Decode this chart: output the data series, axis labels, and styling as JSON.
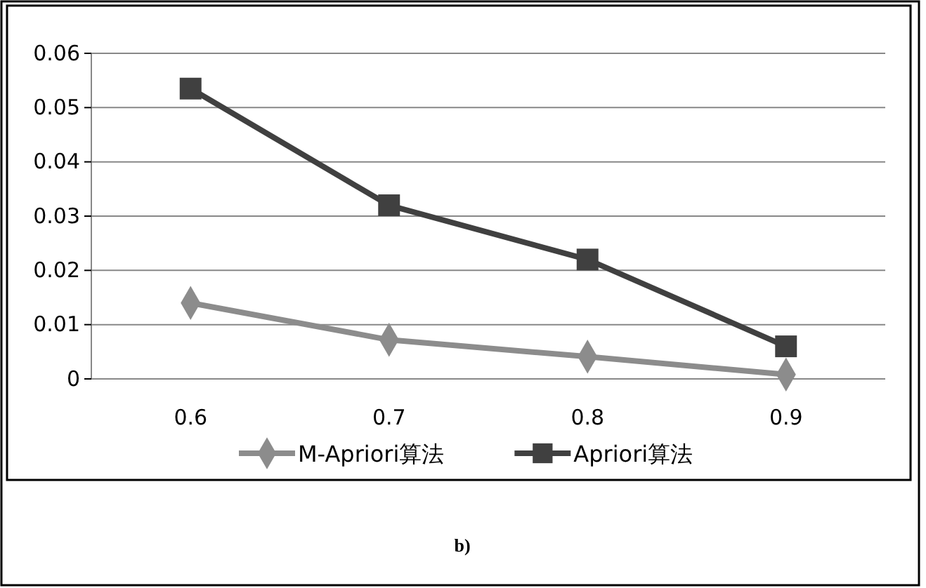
{
  "chart_data": {
    "type": "line",
    "categories": [
      "0.6",
      "0.7",
      "0.8",
      "0.9"
    ],
    "series": [
      {
        "name": "M-Apriori算法",
        "color": "#8c8c8c",
        "marker": "diamond",
        "values": [
          0.014,
          0.0072,
          0.0041,
          0.0008
        ]
      },
      {
        "name": "Apriori算法",
        "color": "#404040",
        "marker": "square",
        "values": [
          0.0535,
          0.032,
          0.022,
          0.006
        ]
      }
    ],
    "ylim": [
      0,
      0.06
    ],
    "yticks": [
      0,
      0.01,
      0.02,
      0.03,
      0.04,
      0.05,
      0.06
    ],
    "grid": "y",
    "legend": "bottom",
    "annotations": [
      "b)"
    ]
  }
}
